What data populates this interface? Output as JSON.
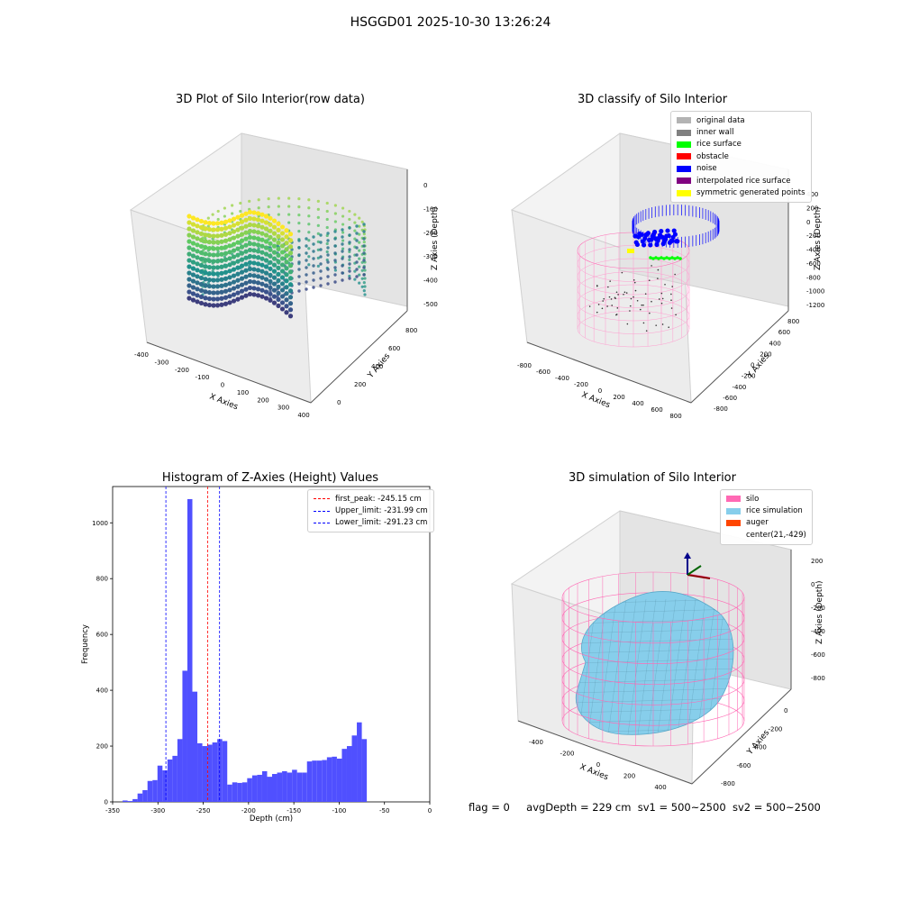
{
  "suptitle": "HSGGD01 2025-10-30 13:26:24",
  "panel_raw": {
    "title": "3D Plot of Silo Interior(row data)",
    "x_label": "X Axies",
    "y_label": "Y Axies",
    "z_label": "Z Axies (Depth)",
    "x_ticks": [
      "-400",
      "-300",
      "-200",
      "-100",
      "0",
      "100",
      "200",
      "300",
      "400"
    ],
    "y_ticks": [
      "0",
      "200",
      "400",
      "600",
      "800"
    ],
    "z_ticks": [
      "0",
      "-100",
      "-200",
      "-300",
      "-400",
      "-500"
    ]
  },
  "panel_classify": {
    "title": "3D classify of Silo Interior",
    "x_label": "X Axies",
    "y_label": "Y Axies",
    "z_label": "Z Axies (Depth)",
    "x_ticks": [
      "-800",
      "-600",
      "-400",
      "-200",
      "0",
      "200",
      "400",
      "600",
      "800"
    ],
    "y_ticks": [
      "-800",
      "-600",
      "-400",
      "-200",
      "0",
      "200",
      "400",
      "600",
      "800"
    ],
    "z_ticks": [
      "400",
      "200",
      "0",
      "-200",
      "-400",
      "-600",
      "-800",
      "-1000",
      "-1200"
    ],
    "legend": [
      {
        "label": "original data",
        "color": "#b3b3b3"
      },
      {
        "label": "inner wall",
        "color": "#808080"
      },
      {
        "label": "rice surface",
        "color": "#00ff00"
      },
      {
        "label": "obstacle",
        "color": "#ff0000"
      },
      {
        "label": "noise",
        "color": "#0000ff"
      },
      {
        "label": "interpolated rice surface",
        "color": "#800080"
      },
      {
        "label": "symmetric generated points",
        "color": "#ffff00"
      }
    ]
  },
  "panel_sim": {
    "title": "3D simulation of Silo Interior",
    "x_label": "X Axies",
    "y_label": "Y Axies",
    "z_label": "Z Axies (Depth)",
    "x_ticks": [
      "-400",
      "-200",
      "0",
      "200",
      "400"
    ],
    "y_ticks": [
      "0",
      "-200",
      "-400",
      "-600",
      "-800"
    ],
    "z_ticks": [
      "200",
      "0",
      "-200",
      "-400",
      "-600",
      "-800"
    ],
    "legend": [
      {
        "label": "silo",
        "color": "#ff69b4"
      },
      {
        "label": "rice simulation",
        "color": "#87ceeb"
      },
      {
        "label": "auger",
        "color": "#ff4500"
      },
      {
        "label": "center(21,-429)",
        "color": "transparent"
      }
    ]
  },
  "status": {
    "flag": "flag = 0",
    "avg": "avgDepth = 229 cm",
    "sv1": "sv1 = 500~2500",
    "sv2": "sv2 = 500~2500"
  },
  "chart_data": {
    "type": "bar",
    "title": "Histogram of Z-Axies (Height) Values",
    "xlabel": "Depth (cm)",
    "ylabel": "Frequency",
    "xlim": [
      -350,
      0
    ],
    "ylim": [
      0,
      1130
    ],
    "x_ticks": [
      -350,
      -300,
      -250,
      -200,
      -150,
      -100,
      -50,
      0
    ],
    "y_ticks": [
      0,
      200,
      400,
      600,
      800,
      1000
    ],
    "bar_color": "#5050ff",
    "bin_width": 5.5,
    "bin_start": -339,
    "values": [
      5,
      3,
      10,
      30,
      42,
      75,
      78,
      130,
      113,
      152,
      165,
      225,
      470,
      1085,
      395,
      210,
      200,
      205,
      213,
      225,
      218,
      62,
      70,
      68,
      70,
      85,
      95,
      97,
      110,
      90,
      100,
      105,
      110,
      105,
      115,
      105,
      105,
      145,
      148,
      148,
      150,
      160,
      162,
      155,
      190,
      200,
      238,
      285,
      225
    ],
    "vlines": [
      {
        "label": "first_peak: -245.15 cm",
        "x": -245.15,
        "color": "#ff0000"
      },
      {
        "label": "Upper_limit: -231.99 cm",
        "x": -231.99,
        "color": "#0000ff"
      },
      {
        "label": "Lower_limit: -291.23 cm",
        "x": -291.23,
        "color": "#0000ff"
      }
    ]
  }
}
